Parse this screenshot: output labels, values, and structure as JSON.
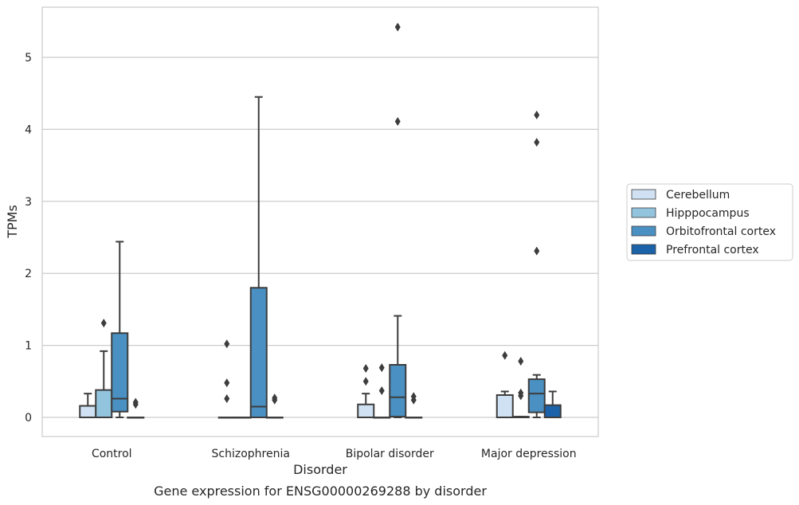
{
  "chart_data": {
    "type": "box",
    "title": "",
    "caption": "Gene expression for ENSG00000269288 by disorder",
    "xlabel": "Disorder",
    "ylabel": "TPMs",
    "ylim": [
      -0.27,
      5.7
    ],
    "yticks": [
      0,
      1,
      2,
      3,
      4,
      5
    ],
    "grid": "horizontal",
    "legend_position": "right",
    "categories": [
      "Control",
      "Schizophrenia",
      "Bipolar disorder",
      "Major depression"
    ],
    "series": [
      {
        "name": "Cerebellum",
        "color": "#cfe1f2",
        "boxes": [
          {
            "q1": 0,
            "median": 0,
            "q3": 0.16,
            "whislo": 0,
            "whishi": 0.33,
            "fliers": []
          },
          {
            "q1": 0,
            "median": 0,
            "q3": 0,
            "whislo": 0,
            "whishi": 0,
            "fliers": [
              1.02,
              0.48,
              0.26
            ]
          },
          {
            "q1": 0,
            "median": 0,
            "q3": 0.18,
            "whislo": 0,
            "whishi": 0.33,
            "fliers": [
              0.68,
              0.5
            ]
          },
          {
            "q1": 0,
            "median": 0,
            "q3": 0.31,
            "whislo": 0,
            "whishi": 0.36,
            "fliers": [
              0.86
            ]
          }
        ]
      },
      {
        "name": "Hipppocampus",
        "color": "#93c4de",
        "boxes": [
          {
            "q1": 0,
            "median": 0,
            "q3": 0.38,
            "whislo": 0,
            "whishi": 0.92,
            "fliers": [
              1.31
            ]
          },
          {
            "q1": 0,
            "median": 0,
            "q3": 0,
            "whislo": 0,
            "whishi": 0,
            "fliers": []
          },
          {
            "q1": 0,
            "median": 0,
            "q3": 0,
            "whislo": 0,
            "whishi": 0,
            "fliers": [
              0.69,
              0.37
            ]
          },
          {
            "q1": 0,
            "median": 0,
            "q3": 0.01,
            "whislo": 0,
            "whishi": 0.01,
            "fliers": [
              0.78,
              0.34,
              0.3
            ]
          }
        ]
      },
      {
        "name": "Orbitofrontal cortex",
        "color": "#4a90c2",
        "boxes": [
          {
            "q1": 0.08,
            "median": 0.26,
            "q3": 1.17,
            "whislo": 0,
            "whishi": 2.44,
            "fliers": []
          },
          {
            "q1": 0,
            "median": 0.15,
            "q3": 1.8,
            "whislo": 0,
            "whishi": 4.45,
            "fliers": []
          },
          {
            "q1": 0.01,
            "median": 0.28,
            "q3": 0.73,
            "whislo": 0,
            "whishi": 1.41,
            "fliers": [
              5.42,
              4.11
            ]
          },
          {
            "q1": 0.07,
            "median": 0.33,
            "q3": 0.53,
            "whislo": 0,
            "whishi": 0.59,
            "fliers": [
              4.2,
              3.82,
              2.31
            ]
          }
        ]
      },
      {
        "name": "Prefrontal cortex",
        "color": "#1c62a8",
        "boxes": [
          {
            "q1": 0,
            "median": 0,
            "q3": 0,
            "whislo": 0,
            "whishi": 0,
            "fliers": [
              0.21,
              0.18
            ]
          },
          {
            "q1": 0,
            "median": 0,
            "q3": 0,
            "whislo": 0,
            "whishi": 0,
            "fliers": [
              0.27,
              0.24
            ]
          },
          {
            "q1": 0,
            "median": 0,
            "q3": 0,
            "whislo": 0,
            "whishi": 0,
            "fliers": [
              0.29,
              0.24
            ]
          },
          {
            "q1": 0,
            "median": 0,
            "q3": 0.17,
            "whislo": 0,
            "whishi": 0.36,
            "fliers": []
          }
        ]
      }
    ]
  }
}
